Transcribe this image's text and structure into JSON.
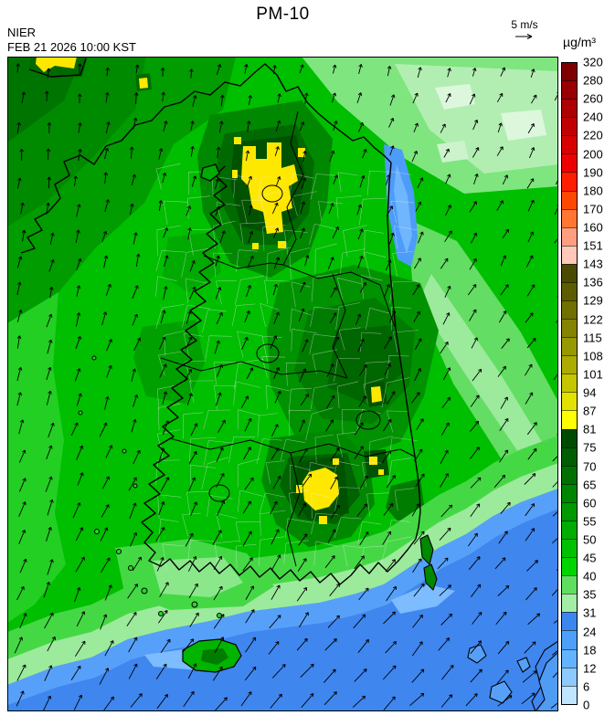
{
  "header": {
    "title": "PM-10",
    "source": "NIER",
    "timestamp": "FEB 21 2026 10:00 KST",
    "wind_scale_label": "5 m/s",
    "unit_label": "µg/m³"
  },
  "legend": {
    "unit": "µg/m³",
    "tick_labels": [
      "320",
      "280",
      "260",
      "240",
      "220",
      "200",
      "190",
      "180",
      "170",
      "160",
      "151",
      "143",
      "136",
      "129",
      "122",
      "115",
      "108",
      "101",
      "94",
      "87",
      "81",
      "75",
      "70",
      "65",
      "60",
      "55",
      "50",
      "45",
      "40",
      "35",
      "31",
      "24",
      "18",
      "12",
      "6",
      "0"
    ],
    "band_colors_top_to_bottom": [
      "#7f0000",
      "#980000",
      "#ae0000",
      "#c30000",
      "#d90000",
      "#ee0000",
      "#ff1e00",
      "#ff4900",
      "#ff7733",
      "#ff9f80",
      "#ffc8b8",
      "#4a4a00",
      "#5d5d00",
      "#707000",
      "#848400",
      "#989800",
      "#acac00",
      "#c6c600",
      "#e2e200",
      "#ffff00",
      "#004a00",
      "#005e00",
      "#007100",
      "#008500",
      "#009900",
      "#00ad00",
      "#00c100",
      "#00d500",
      "#5fdf5f",
      "#a4eda4",
      "#3c86f0",
      "#4d9ffa",
      "#63b3ff",
      "#8ccaff",
      "#c0e5ff"
    ]
  },
  "chart_data": {
    "type": "heatmap",
    "title": "PM-10",
    "subtitle": "FEB 21 2026 10:00 KST",
    "source": "NIER",
    "unit": "µg/m³",
    "legend_position": "right",
    "scale_boundaries": [
      320,
      280,
      260,
      240,
      220,
      200,
      190,
      180,
      170,
      160,
      151,
      143,
      136,
      129,
      122,
      115,
      108,
      101,
      94,
      87,
      81,
      75,
      70,
      65,
      60,
      55,
      50,
      45,
      40,
      35,
      31,
      24,
      18,
      12,
      6,
      0
    ],
    "wind_reference": {
      "label": "5 m/s"
    },
    "map_region": "South Korea and surrounding seas",
    "field_summary": [
      {
        "area": "most inland areas of South Korea",
        "value_range_ug_m3": "40-75",
        "appearance": "green"
      },
      {
        "area": "Seoul metropolitan area",
        "value_range_ug_m3": "81-87",
        "appearance": "yellow patch ringed by dark green"
      },
      {
        "area": "south coast industrial cluster",
        "value_range_ug_m3": "81-87",
        "appearance": "yellow spots"
      },
      {
        "area": "north-west corner spot",
        "value_range_ug_m3": "81-87",
        "appearance": "yellow patch"
      },
      {
        "area": "southern sea / south-east offshore",
        "value_range_ug_m3": "0-31",
        "appearance": "blue"
      },
      {
        "area": "upper east coast sliver (East Sea)",
        "value_range_ug_m3": "12-24",
        "appearance": "blue"
      },
      {
        "area": "north-east and far east edge",
        "value_range_ug_m3": "31-40",
        "appearance": "pale green"
      }
    ],
    "wind_field_summary": "arrow grid covering the whole domain, winds blowing generally toward the north-east, stronger over the southern sea"
  }
}
